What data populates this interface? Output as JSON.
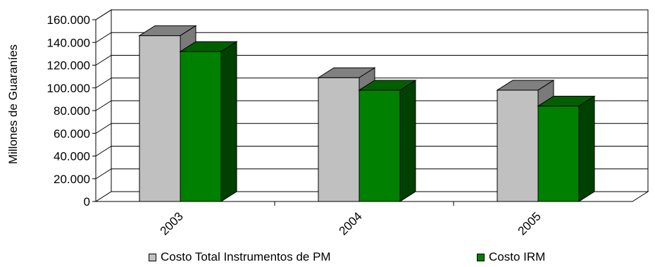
{
  "chart_data": {
    "type": "bar",
    "title": "",
    "xlabel": "",
    "ylabel": "Millones de Guaraníes",
    "categories": [
      "2003",
      "2004",
      "2005"
    ],
    "series": [
      {
        "name": "Costo Total Instrumentos de PM",
        "values": [
          146000,
          109000,
          98000
        ],
        "color": "#c0c0c0",
        "top_color": "#808080",
        "side_color": "#7a7a7a"
      },
      {
        "name": "Costo IRM",
        "values": [
          132000,
          98000,
          84000
        ],
        "color": "#008000",
        "top_color": "#006000",
        "side_color": "#004000"
      }
    ],
    "ylim": [
      0,
      160000
    ],
    "yticks": [
      0,
      20000,
      40000,
      60000,
      80000,
      100000,
      120000,
      140000,
      160000
    ],
    "ytick_labels": [
      "0",
      "20.000",
      "40.000",
      "60.000",
      "80.000",
      "100.000",
      "120.000",
      "140.000",
      "160.000"
    ],
    "grid": true,
    "legend_position": "bottom",
    "three_d": true
  }
}
